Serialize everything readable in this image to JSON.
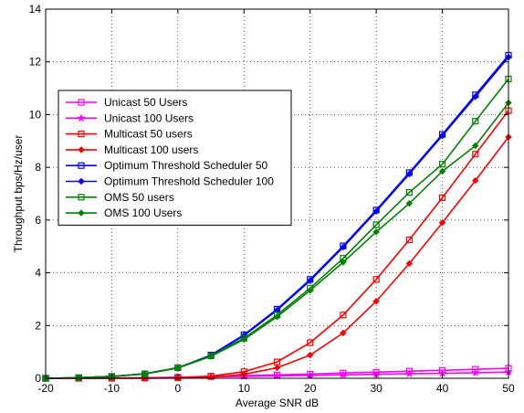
{
  "chart_data": {
    "type": "line",
    "xlabel": "Average SNR dB",
    "ylabel": "Throughput bps/Hz/user",
    "xlim": [
      -20,
      50
    ],
    "ylim": [
      0,
      14
    ],
    "xticks": [
      -20,
      -10,
      0,
      10,
      20,
      30,
      40,
      50
    ],
    "yticks": [
      0,
      2,
      4,
      6,
      8,
      10,
      12,
      14
    ],
    "grid": true,
    "legend_position": "upper-left",
    "x": [
      -20,
      -15,
      -10,
      -5,
      0,
      5,
      10,
      15,
      20,
      25,
      30,
      35,
      40,
      45,
      50
    ],
    "series": [
      {
        "name": "Unicast 50 Users",
        "color": "#ff00ff",
        "marker": "square",
        "values": [
          0.0,
          0.0,
          0.01,
          0.02,
          0.04,
          0.07,
          0.1,
          0.13,
          0.16,
          0.2,
          0.23,
          0.27,
          0.3,
          0.34,
          0.38
        ]
      },
      {
        "name": "Unicast 100 Users",
        "color": "#ff00ff",
        "marker": "star",
        "values": [
          0.0,
          0.0,
          0.01,
          0.01,
          0.03,
          0.05,
          0.07,
          0.09,
          0.11,
          0.13,
          0.15,
          0.17,
          0.19,
          0.21,
          0.23
        ]
      },
      {
        "name": "Multicast 50 users",
        "color": "#ff0000",
        "marker": "square",
        "values": [
          0.0,
          0.0,
          0.0,
          0.01,
          0.02,
          0.08,
          0.25,
          0.62,
          1.35,
          2.4,
          3.75,
          5.25,
          6.85,
          8.5,
          10.15
        ]
      },
      {
        "name": "Multicast 100 users",
        "color": "#ff0000",
        "marker": "diamond",
        "values": [
          0.0,
          0.0,
          0.0,
          0.0,
          0.01,
          0.04,
          0.15,
          0.4,
          0.88,
          1.72,
          2.92,
          4.35,
          5.9,
          7.5,
          9.15
        ]
      },
      {
        "name": "Optimum Threshold Scheduler 50",
        "color": "#0000ff",
        "marker": "square",
        "values": [
          0.0,
          0.02,
          0.07,
          0.17,
          0.4,
          0.88,
          1.65,
          2.62,
          3.75,
          5.02,
          6.38,
          7.8,
          9.25,
          10.75,
          12.25
        ]
      },
      {
        "name": "Optimum Threshold Scheduler 100",
        "color": "#0000ff",
        "marker": "diamond",
        "values": [
          0.0,
          0.02,
          0.07,
          0.17,
          0.39,
          0.86,
          1.62,
          2.58,
          3.7,
          4.97,
          6.33,
          7.75,
          9.2,
          10.68,
          12.18
        ]
      },
      {
        "name": "OMS 50 users",
        "color": "#008000",
        "marker": "square",
        "values": [
          0.0,
          0.02,
          0.07,
          0.17,
          0.4,
          0.85,
          1.52,
          2.4,
          3.42,
          4.55,
          5.82,
          7.05,
          8.12,
          9.75,
          11.35
        ]
      },
      {
        "name": "OMS 100 Users",
        "color": "#008000",
        "marker": "diamond",
        "values": [
          0.0,
          0.02,
          0.07,
          0.16,
          0.39,
          0.83,
          1.47,
          2.33,
          3.33,
          4.4,
          5.55,
          6.63,
          7.85,
          8.82,
          10.45
        ]
      }
    ]
  }
}
